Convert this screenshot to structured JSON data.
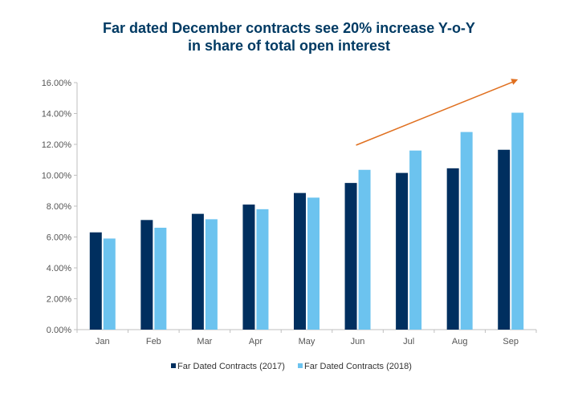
{
  "chart_data": {
    "type": "bar",
    "title_line1": "Far dated December contracts see 20% increase Y-o-Y",
    "title_line2": "in share of total open interest",
    "categories": [
      "Jan",
      "Feb",
      "Mar",
      "Apr",
      "May",
      "Jun",
      "Jul",
      "Aug",
      "Sep"
    ],
    "series": [
      {
        "name": "Far Dated Contracts (2017)",
        "color": "#002f5f",
        "values": [
          6.3,
          7.1,
          7.5,
          8.1,
          8.85,
          9.5,
          10.15,
          10.45,
          11.65
        ]
      },
      {
        "name": "Far Dated Contracts (2018)",
        "color": "#6cc3ef",
        "values": [
          5.9,
          6.6,
          7.15,
          7.8,
          8.55,
          10.35,
          11.6,
          12.8,
          14.05
        ]
      }
    ],
    "ylim": [
      0,
      16
    ],
    "yticks": [
      "0.00%",
      "2.00%",
      "4.00%",
      "6.00%",
      "8.00%",
      "10.00%",
      "12.00%",
      "14.00%",
      "16.00%"
    ],
    "ytick_values": [
      0,
      2,
      4,
      6,
      8,
      10,
      12,
      14,
      16
    ],
    "grid": false,
    "legend_position": "bottom",
    "annotation": {
      "type": "trend-arrow",
      "color": "#e07020",
      "from": {
        "category": "Jun",
        "y": 12.0
      },
      "to": {
        "category": "Sep",
        "y": 16.0
      }
    }
  }
}
